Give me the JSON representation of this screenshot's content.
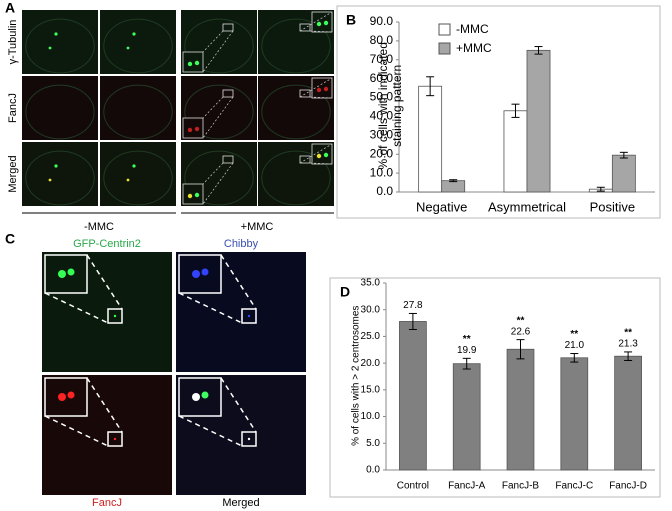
{
  "panel_labels": [
    "A",
    "B",
    "C",
    "D"
  ],
  "panel_a": {
    "row_labels": [
      "γ-Tubulin",
      "FancJ",
      "Merged"
    ],
    "condition_labels": [
      "-MMC",
      "+MMC"
    ]
  },
  "panel_c": {
    "channel_labels": [
      "GFP-Centrin2",
      "Chibby",
      "FancJ",
      "Merged"
    ]
  },
  "chart_data": [
    {
      "type": "bar",
      "ylabel": "% of cells with indicated staining pattern",
      "categories": [
        "Negative",
        "Asymmetrical",
        "Positive"
      ],
      "series": [
        {
          "name": "-MMC",
          "color": "#ffffff",
          "values": [
            56,
            43,
            1.5
          ],
          "errors": [
            5,
            3.5,
            1
          ]
        },
        {
          "name": "+MMC",
          "color": "#a6a6a6",
          "values": [
            6,
            75,
            19.5
          ],
          "errors": [
            0.5,
            2,
            1.5
          ]
        }
      ],
      "ylim": [
        0,
        90
      ],
      "yticks": [
        {
          "value": 0,
          "label": "0.0"
        },
        {
          "value": 10,
          "label": "10.0"
        },
        {
          "value": 20,
          "label": "20.0"
        },
        {
          "value": 30,
          "label": "30.0"
        },
        {
          "value": 40,
          "label": "40.0"
        },
        {
          "value": 50,
          "label": "50.0"
        },
        {
          "value": 60,
          "label": "60.0"
        },
        {
          "value": 70,
          "label": "70.0"
        },
        {
          "value": 80,
          "label": "80.0"
        },
        {
          "value": 90,
          "label": "90.0"
        }
      ],
      "legend": "upper left",
      "grid": false
    },
    {
      "type": "bar",
      "ylabel": "% of cells with > 2 centrosomes",
      "categories": [
        "Control",
        "FancJ-A",
        "FancJ-B",
        "FancJ-C",
        "FancJ-D"
      ],
      "series": [
        {
          "color": "#808080",
          "values": [
            27.8,
            19.9,
            22.6,
            21.0,
            21.3
          ],
          "value_labels": [
            "27.8",
            "19.9",
            "22.6",
            "21.0",
            "21.3"
          ],
          "errors": [
            1.5,
            1.0,
            1.8,
            0.8,
            0.8
          ],
          "significance": [
            null,
            "**",
            "**",
            "**",
            "**"
          ]
        }
      ],
      "ylim": [
        0,
        35
      ],
      "yticks": [
        {
          "value": 0,
          "label": "0.0"
        },
        {
          "value": 5,
          "label": "5.0"
        },
        {
          "value": 10,
          "label": "10.0"
        },
        {
          "value": 15,
          "label": "15.0"
        },
        {
          "value": 20,
          "label": "20.0"
        },
        {
          "value": 25,
          "label": "25.0"
        },
        {
          "value": 30,
          "label": "30.0"
        },
        {
          "value": 35,
          "label": "35.0"
        }
      ],
      "grid": false
    }
  ]
}
